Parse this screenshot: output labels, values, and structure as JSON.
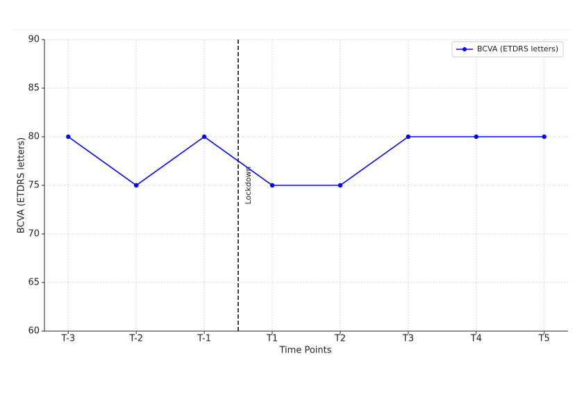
{
  "chart_data": {
    "type": "line",
    "x_label": "Time Points",
    "y_label": "BCVA (ETDRS letters)",
    "categories": [
      "T-3",
      "T-2",
      "T-1",
      "T1",
      "T2",
      "T3",
      "T4",
      "T5"
    ],
    "series": [
      {
        "name": "BCVA (ETDRS letters)",
        "color": "#0000ff",
        "values": [
          80,
          75,
          80,
          75,
          75,
          80,
          80,
          80
        ]
      }
    ],
    "ylim": [
      60,
      90
    ],
    "yticks": [
      60,
      65,
      70,
      75,
      80,
      85,
      90
    ],
    "grid": true,
    "legend": "upper right",
    "annotation": "Lockdown"
  }
}
